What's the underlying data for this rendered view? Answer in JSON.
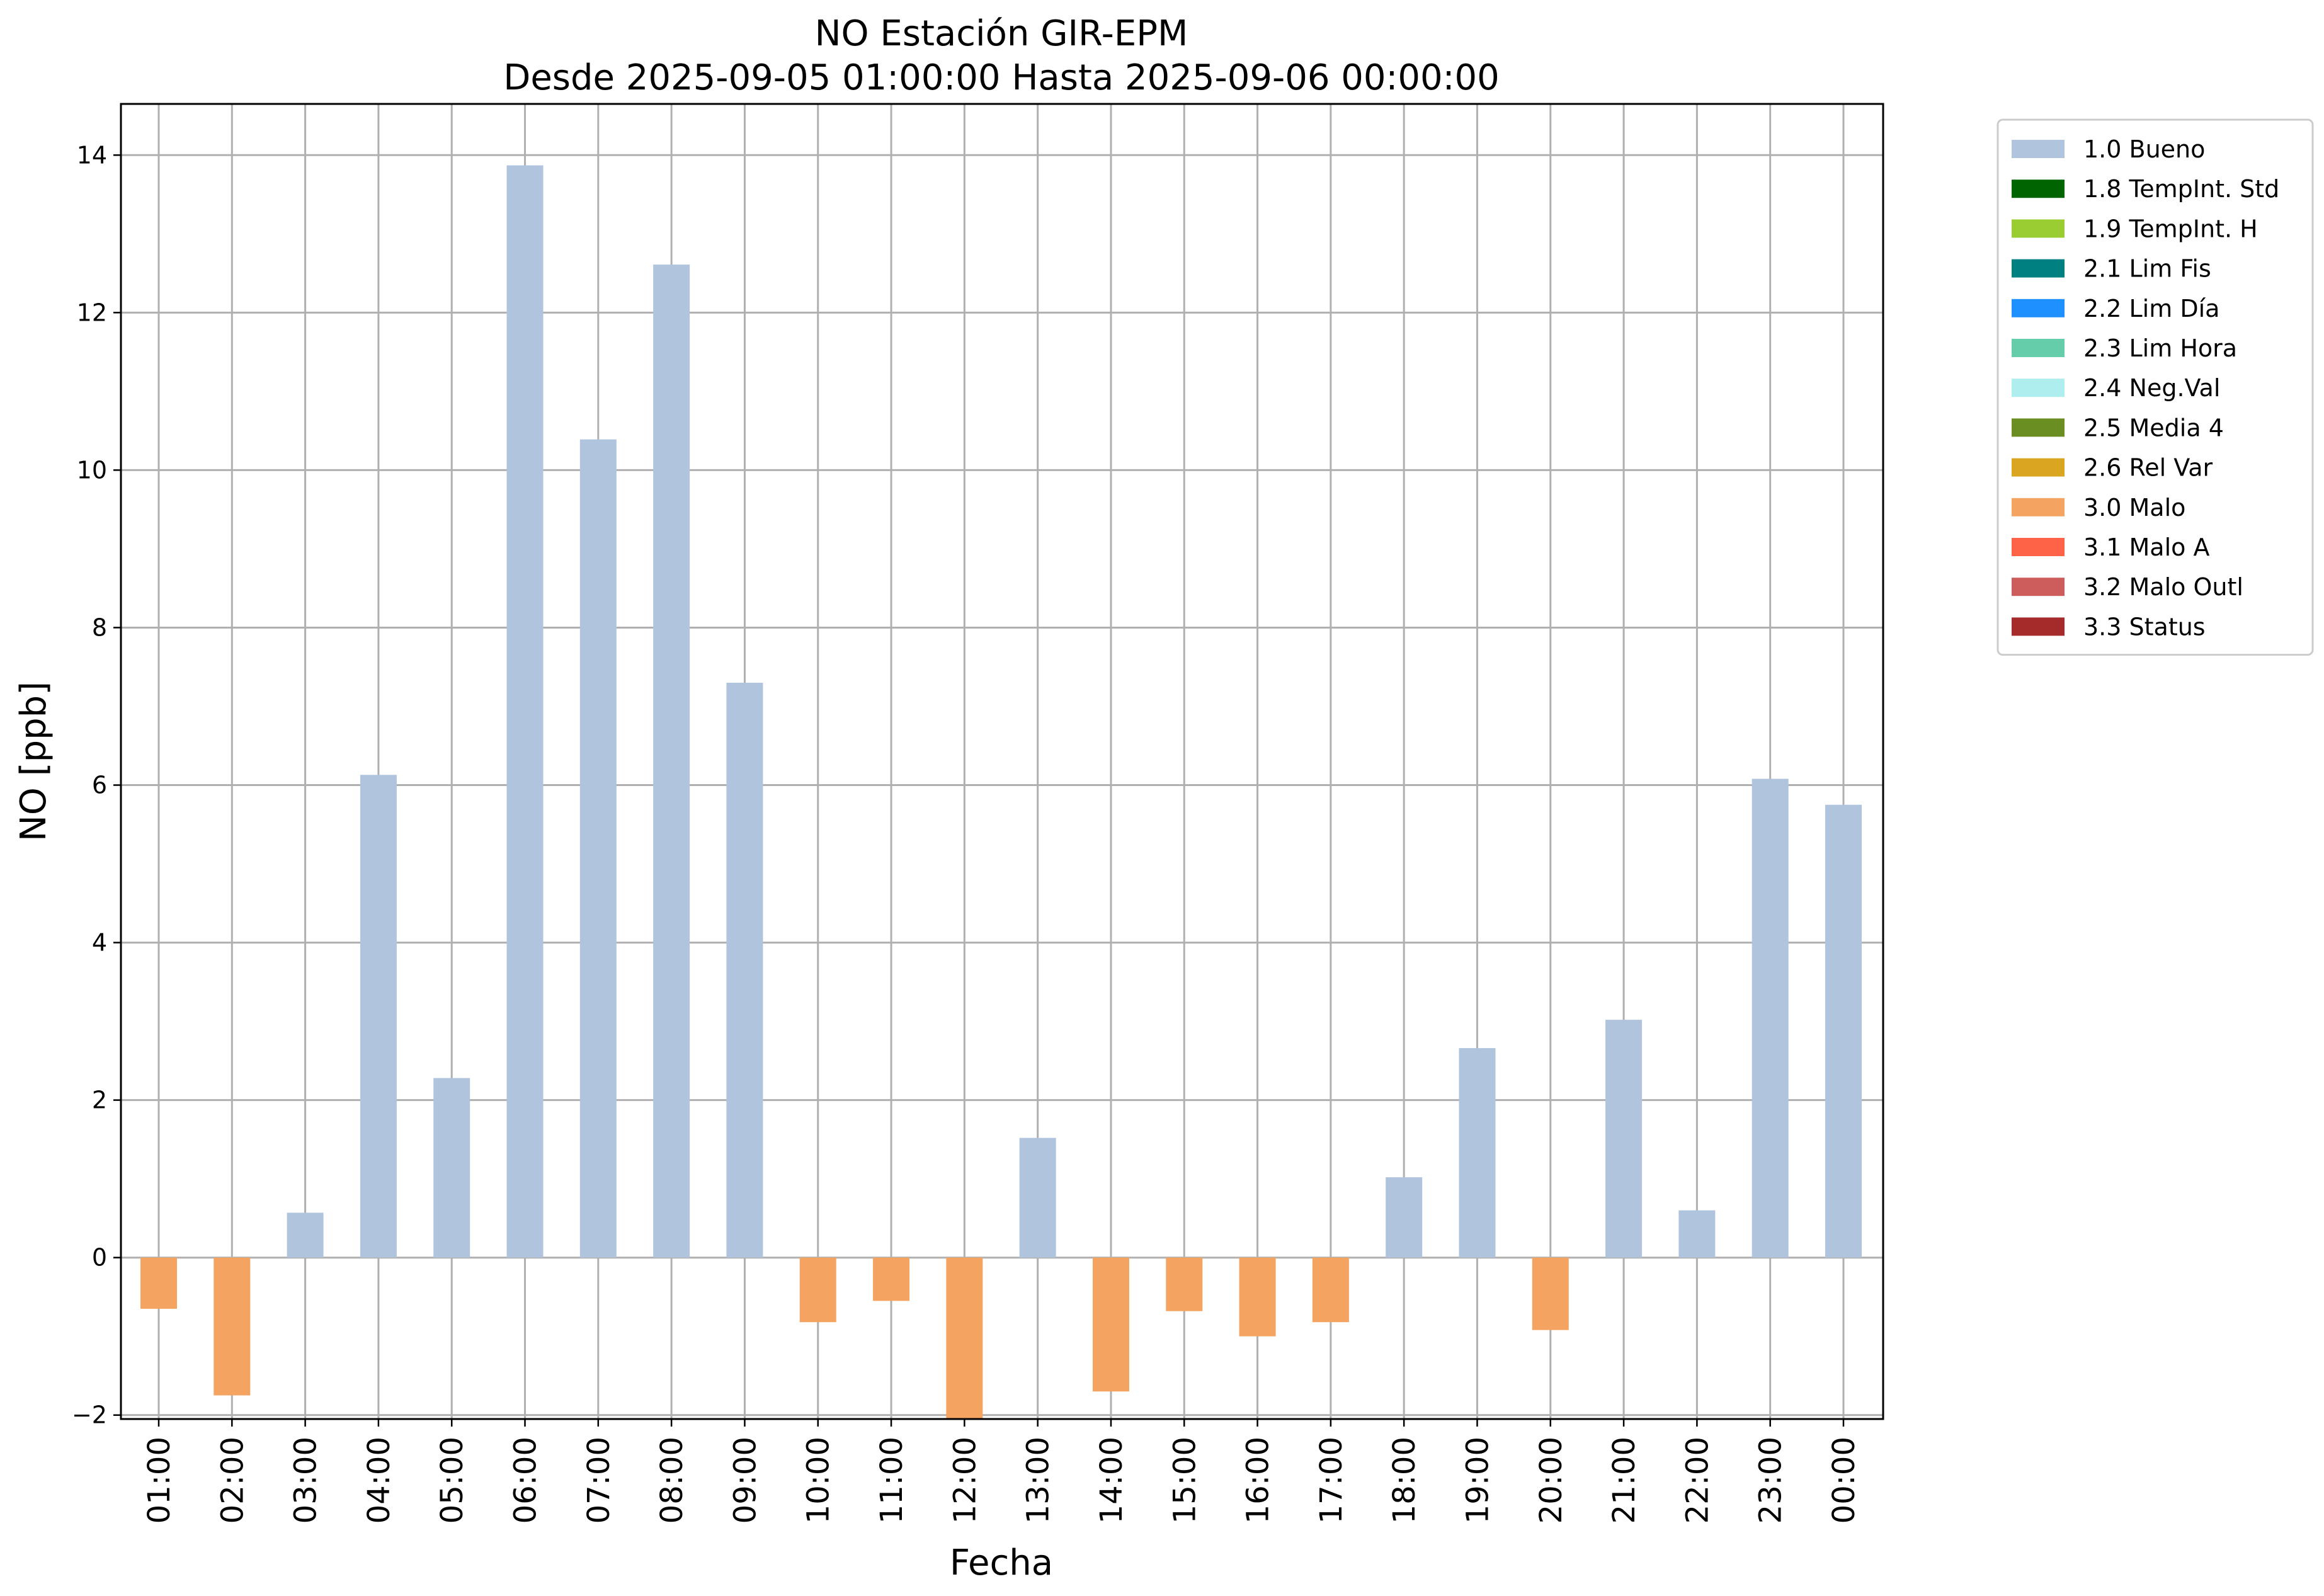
{
  "chart_data": {
    "type": "bar",
    "title": "NO Estación GIR-EPM",
    "subtitle": "Desde 2025-09-05 01:00:00 Hasta 2025-09-06 00:00:00",
    "xlabel": "Fecha",
    "ylabel": "NO [ppb]",
    "ylim": [
      -2.05,
      14.65
    ],
    "yticks": [
      -2,
      0,
      2,
      4,
      6,
      8,
      10,
      12,
      14
    ],
    "grid": true,
    "legend_position": "outside-top-right",
    "categories": [
      "01:00",
      "02:00",
      "03:00",
      "04:00",
      "05:00",
      "06:00",
      "07:00",
      "08:00",
      "09:00",
      "10:00",
      "11:00",
      "12:00",
      "13:00",
      "14:00",
      "15:00",
      "16:00",
      "17:00",
      "18:00",
      "19:00",
      "20:00",
      "21:00",
      "22:00",
      "23:00",
      "00:00"
    ],
    "values": [
      -0.65,
      -1.75,
      0.57,
      6.13,
      2.28,
      13.87,
      10.39,
      12.61,
      7.3,
      -0.82,
      -0.55,
      -2.05,
      1.52,
      -1.7,
      -0.68,
      -1.0,
      -0.82,
      1.02,
      2.66,
      -0.92,
      3.02,
      0.6,
      6.08,
      5.75
    ],
    "flags": [
      "3.0",
      "3.0",
      "1.0",
      "1.0",
      "1.0",
      "1.0",
      "1.0",
      "1.0",
      "1.0",
      "3.0",
      "3.0",
      "3.0",
      "1.0",
      "3.0",
      "3.0",
      "3.0",
      "3.0",
      "1.0",
      "1.0",
      "3.0",
      "1.0",
      "1.0",
      "1.0",
      "1.0"
    ],
    "legend": [
      {
        "code": "1.0",
        "label": "1.0 Bueno",
        "color": "#b0c4de"
      },
      {
        "code": "1.8",
        "label": "1.8 TempInt. Std",
        "color": "#006400"
      },
      {
        "code": "1.9",
        "label": "1.9 TempInt. H",
        "color": "#9acd32"
      },
      {
        "code": "2.1",
        "label": "2.1 Lim Fis",
        "color": "#008080"
      },
      {
        "code": "2.2",
        "label": "2.2 Lim Día",
        "color": "#1e90ff"
      },
      {
        "code": "2.3",
        "label": "2.3 Lim Hora",
        "color": "#66cdaa"
      },
      {
        "code": "2.4",
        "label": "2.4 Neg.Val",
        "color": "#afeeee"
      },
      {
        "code": "2.5",
        "label": "2.5 Media 4",
        "color": "#6b8e23"
      },
      {
        "code": "2.6",
        "label": "2.6 Rel Var",
        "color": "#daa520"
      },
      {
        "code": "3.0",
        "label": "3.0 Malo",
        "color": "#f4a460"
      },
      {
        "code": "3.1",
        "label": "3.1 Malo A",
        "color": "#ff6347"
      },
      {
        "code": "3.2",
        "label": "3.2 Malo Outl",
        "color": "#cd5c5c"
      },
      {
        "code": "3.3",
        "label": "3.3 Status",
        "color": "#a52a2a"
      }
    ]
  }
}
